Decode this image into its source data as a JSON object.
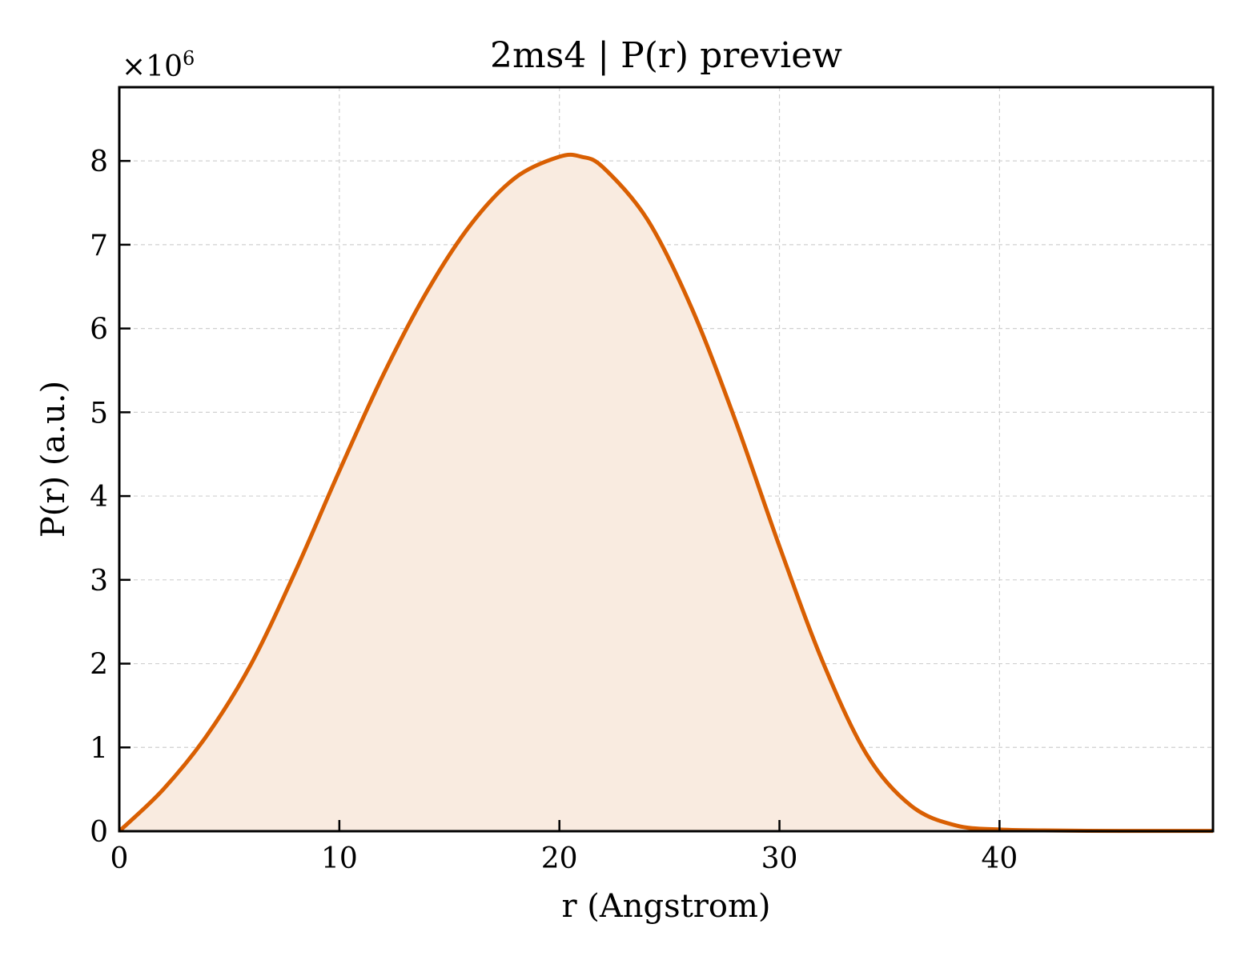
{
  "chart_data": {
    "type": "area",
    "title": "2ms4 | P(r) preview",
    "xlabel": "r (Angstrom)",
    "ylabel": "P(r) (a.u.)",
    "y_multiplier_label": "×10",
    "y_multiplier_exponent": "6",
    "xlim": [
      0,
      49.7
    ],
    "ylim": [
      0,
      8.88
    ],
    "x_ticks": [
      0,
      10,
      20,
      30,
      40
    ],
    "x_tick_labels": [
      "0",
      "10",
      "20",
      "30",
      "40"
    ],
    "y_ticks": [
      0,
      1,
      2,
      3,
      4,
      5,
      6,
      7,
      8
    ],
    "y_tick_labels": [
      "0",
      "1",
      "2",
      "3",
      "4",
      "5",
      "6",
      "7",
      "8"
    ],
    "grid": true,
    "colors": {
      "line": "#d95f02",
      "fill": "#f9ebe0",
      "grid": "#d0d0d0"
    },
    "series": [
      {
        "x": [
          0,
          2,
          4,
          6,
          8,
          10,
          12,
          14,
          16,
          18,
          20,
          21,
          22,
          24,
          26,
          28,
          30,
          32,
          34,
          36,
          38,
          40,
          42,
          44,
          46,
          48,
          49.7
        ],
        "values": [
          0,
          0.5,
          1.15,
          2.0,
          3.1,
          4.3,
          5.45,
          6.45,
          7.25,
          7.8,
          8.05,
          8.05,
          7.92,
          7.3,
          6.25,
          4.9,
          3.4,
          2.0,
          0.9,
          0.3,
          0.07,
          0.02,
          0.01,
          0.005,
          0.004,
          0.004,
          0.003
        ]
      }
    ]
  }
}
